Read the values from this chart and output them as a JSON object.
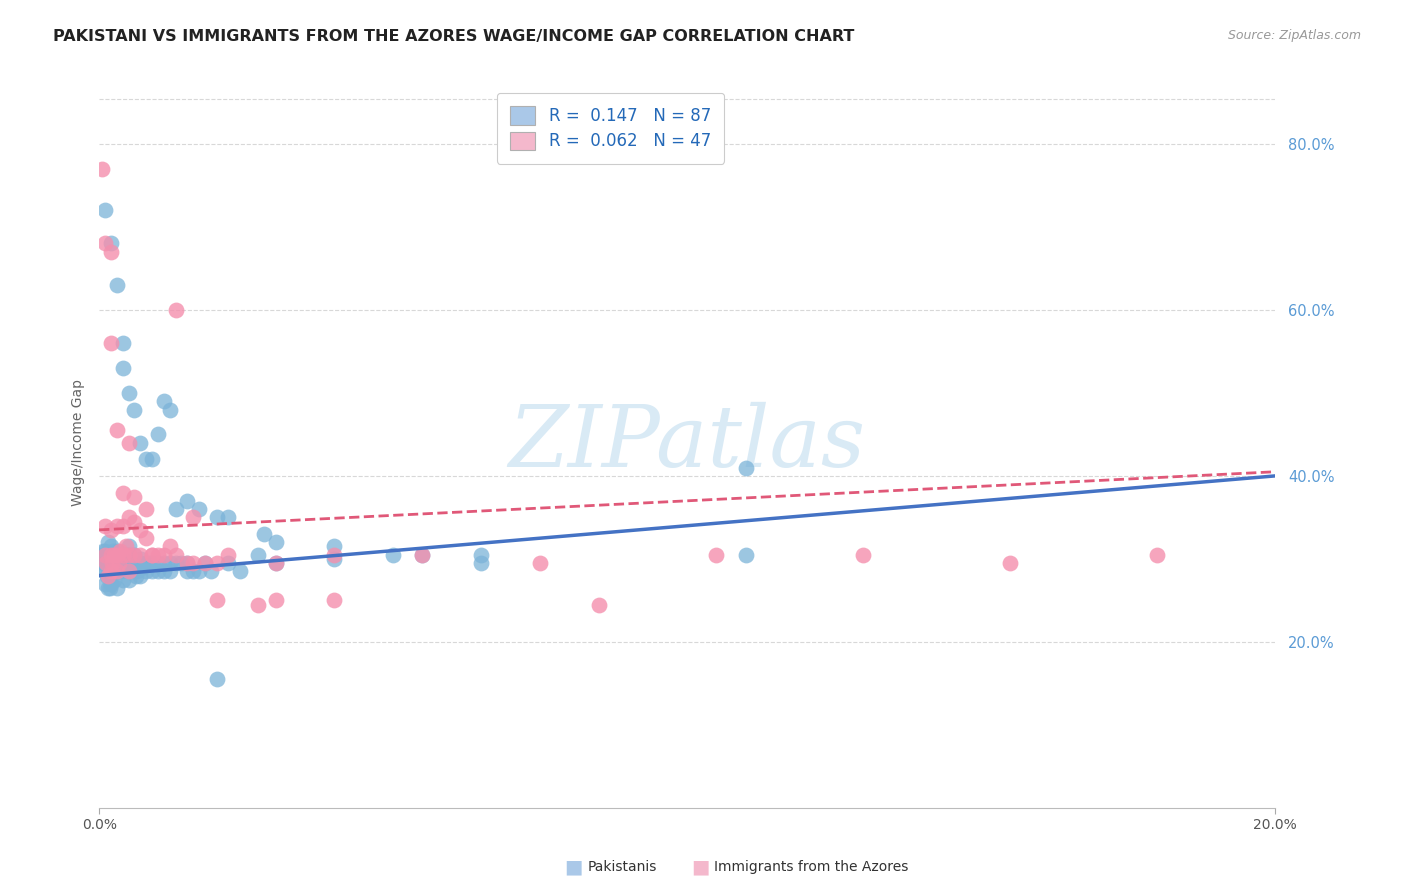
{
  "title": "PAKISTANI VS IMMIGRANTS FROM THE AZORES WAGE/INCOME GAP CORRELATION CHART",
  "source": "Source: ZipAtlas.com",
  "ylabel": "Wage/Income Gap",
  "right_yticks": [
    20.0,
    40.0,
    60.0,
    80.0
  ],
  "legend_blue_label": "R =  0.147   N = 87",
  "legend_pink_label": "R =  0.062   N = 47",
  "legend_blue_color": "#aac8e8",
  "legend_pink_color": "#f4b8cc",
  "blue_line_x0": 0.0,
  "blue_line_y0": 0.28,
  "blue_line_x1": 0.2,
  "blue_line_y1": 0.4,
  "pink_line_x0": 0.0,
  "pink_line_y0": 0.335,
  "pink_line_x1": 0.2,
  "pink_line_y1": 0.405,
  "blue_line_color": "#4472c4",
  "pink_line_color": "#e05878",
  "dot_blue": "#7bb3d8",
  "dot_pink": "#f48fad",
  "watermark_text": "ZIPatlas",
  "background_color": "#ffffff",
  "grid_color": "#d8d8d8",
  "xmin": 0.0,
  "xmax": 0.2,
  "ymin": 0.0,
  "ymax": 0.88,
  "pakistanis_x": [
    0.0005,
    0.0006,
    0.0007,
    0.0008,
    0.0009,
    0.001,
    0.001,
    0.001,
    0.001,
    0.0012,
    0.0013,
    0.0015,
    0.0015,
    0.0015,
    0.0016,
    0.0017,
    0.0018,
    0.0018,
    0.002,
    0.002,
    0.002,
    0.002,
    0.002,
    0.002,
    0.0022,
    0.0022,
    0.0023,
    0.0025,
    0.0025,
    0.0025,
    0.003,
    0.003,
    0.003,
    0.003,
    0.003,
    0.0032,
    0.0033,
    0.0035,
    0.0035,
    0.0036,
    0.004,
    0.004,
    0.004,
    0.004,
    0.0042,
    0.0045,
    0.005,
    0.005,
    0.005,
    0.005,
    0.005,
    0.006,
    0.006,
    0.006,
    0.0062,
    0.0065,
    0.007,
    0.007,
    0.0072,
    0.0075,
    0.008,
    0.008,
    0.0085,
    0.009,
    0.009,
    0.01,
    0.01,
    0.011,
    0.011,
    0.012,
    0.012,
    0.013,
    0.014,
    0.015,
    0.015,
    0.016,
    0.017,
    0.018,
    0.019,
    0.02,
    0.022,
    0.024,
    0.027,
    0.03,
    0.04,
    0.055,
    0.065,
    0.11
  ],
  "pakistanis_y": [
    0.305,
    0.295,
    0.31,
    0.3,
    0.285,
    0.295,
    0.31,
    0.285,
    0.27,
    0.3,
    0.28,
    0.29,
    0.265,
    0.32,
    0.3,
    0.285,
    0.3,
    0.265,
    0.295,
    0.285,
    0.27,
    0.3,
    0.315,
    0.28,
    0.295,
    0.285,
    0.31,
    0.285,
    0.275,
    0.3,
    0.295,
    0.305,
    0.285,
    0.265,
    0.31,
    0.295,
    0.305,
    0.295,
    0.285,
    0.3,
    0.295,
    0.285,
    0.305,
    0.275,
    0.29,
    0.305,
    0.305,
    0.285,
    0.295,
    0.315,
    0.275,
    0.305,
    0.285,
    0.295,
    0.28,
    0.285,
    0.295,
    0.28,
    0.3,
    0.29,
    0.295,
    0.285,
    0.295,
    0.285,
    0.295,
    0.295,
    0.285,
    0.295,
    0.285,
    0.295,
    0.285,
    0.295,
    0.295,
    0.285,
    0.295,
    0.285,
    0.285,
    0.295,
    0.285,
    0.155,
    0.295,
    0.285,
    0.305,
    0.295,
    0.315,
    0.305,
    0.295,
    0.41
  ],
  "pakistanis_outliers_x": [
    0.001,
    0.002,
    0.003,
    0.004,
    0.004,
    0.005,
    0.006,
    0.007,
    0.008,
    0.009,
    0.01,
    0.011,
    0.012,
    0.013,
    0.015,
    0.017,
    0.02,
    0.022,
    0.028,
    0.03,
    0.04,
    0.05,
    0.065,
    0.11
  ],
  "pakistanis_outliers_y": [
    0.72,
    0.68,
    0.63,
    0.56,
    0.53,
    0.5,
    0.48,
    0.44,
    0.42,
    0.42,
    0.45,
    0.49,
    0.48,
    0.36,
    0.37,
    0.36,
    0.35,
    0.35,
    0.33,
    0.32,
    0.3,
    0.305,
    0.305,
    0.305
  ],
  "azores_x": [
    0.0005,
    0.001,
    0.001,
    0.0012,
    0.0015,
    0.002,
    0.002,
    0.002,
    0.0022,
    0.0025,
    0.003,
    0.003,
    0.003,
    0.0033,
    0.0035,
    0.004,
    0.004,
    0.0045,
    0.005,
    0.005,
    0.005,
    0.006,
    0.006,
    0.007,
    0.007,
    0.008,
    0.009,
    0.01,
    0.011,
    0.012,
    0.013,
    0.015,
    0.016,
    0.018,
    0.02,
    0.022,
    0.027,
    0.03,
    0.04,
    0.055,
    0.075,
    0.085,
    0.105,
    0.13,
    0.155,
    0.18
  ],
  "azores_y": [
    0.77,
    0.34,
    0.305,
    0.295,
    0.28,
    0.335,
    0.305,
    0.285,
    0.295,
    0.305,
    0.34,
    0.305,
    0.285,
    0.295,
    0.31,
    0.34,
    0.305,
    0.315,
    0.35,
    0.305,
    0.285,
    0.345,
    0.305,
    0.335,
    0.305,
    0.325,
    0.305,
    0.305,
    0.305,
    0.315,
    0.305,
    0.295,
    0.295,
    0.295,
    0.295,
    0.305,
    0.245,
    0.295,
    0.305,
    0.305,
    0.295,
    0.245,
    0.305,
    0.305,
    0.295,
    0.305
  ],
  "azores_outliers_x": [
    0.001,
    0.002,
    0.002,
    0.003,
    0.004,
    0.005,
    0.006,
    0.008,
    0.009,
    0.013,
    0.016,
    0.02,
    0.03,
    0.04
  ],
  "azores_outliers_y": [
    0.68,
    0.67,
    0.56,
    0.455,
    0.38,
    0.44,
    0.375,
    0.36,
    0.305,
    0.6,
    0.35,
    0.25,
    0.25,
    0.25
  ]
}
